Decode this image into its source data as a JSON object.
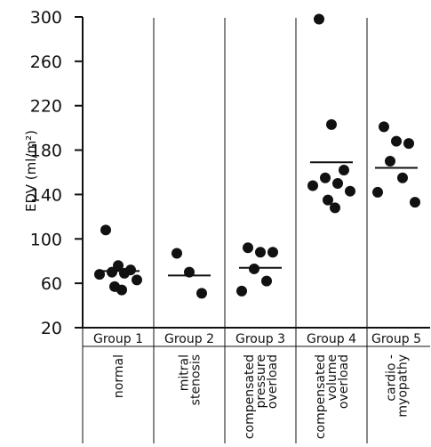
{
  "chart_data": {
    "type": "scatter",
    "title": "",
    "ylabel": "EDV (ml/m²)",
    "ylim": [
      20,
      300
    ],
    "yticks": [
      20,
      60,
      100,
      140,
      180,
      220,
      260,
      300
    ],
    "ytick_labels": [
      "20",
      "60",
      "100",
      "140",
      "180",
      "220",
      "260",
      "300"
    ],
    "groups": [
      {
        "label": "Group 1",
        "description": [
          "normal"
        ],
        "mean": 71,
        "points": [
          108,
          76,
          72,
          70,
          69,
          68,
          63,
          57,
          54
        ]
      },
      {
        "label": "Group 2",
        "description": [
          "mitral",
          "stenosis"
        ],
        "mean": 67,
        "points": [
          87,
          70,
          51
        ]
      },
      {
        "label": "Group 3",
        "description": [
          "compensated",
          "pressure",
          "overload"
        ],
        "mean": 74,
        "points": [
          92,
          88,
          88,
          73,
          62,
          53
        ]
      },
      {
        "label": "Group 4",
        "description": [
          "compensated",
          "volume",
          "overload"
        ],
        "mean": 169,
        "points": [
          298,
          203,
          162,
          155,
          150,
          148,
          143,
          135,
          128
        ]
      },
      {
        "label": "Group 5",
        "description": [
          "cardio -",
          "myopathy"
        ],
        "mean": 164,
        "points": [
          201,
          188,
          186,
          170,
          155,
          142,
          133
        ]
      }
    ]
  },
  "colors": {
    "ink": "#111111",
    "background": "#ffffff"
  }
}
